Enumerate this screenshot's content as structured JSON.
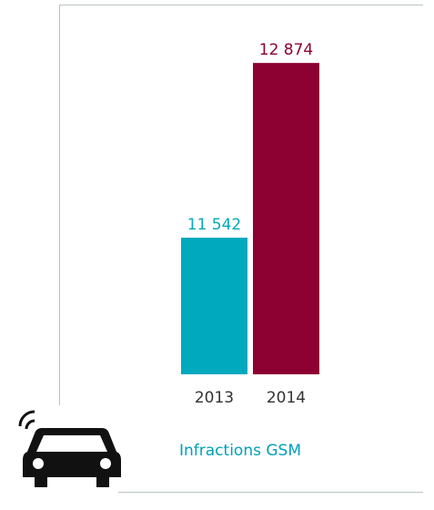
{
  "chart_data": {
    "type": "bar",
    "title": "Infractions GSM",
    "categories": [
      "2013",
      "2014"
    ],
    "values": [
      11542,
      12874
    ],
    "value_labels": [
      "11 542",
      "12 874"
    ],
    "colors": [
      "#00a9bd",
      "#8c0032"
    ],
    "ylim": [
      10500,
      13000
    ]
  }
}
